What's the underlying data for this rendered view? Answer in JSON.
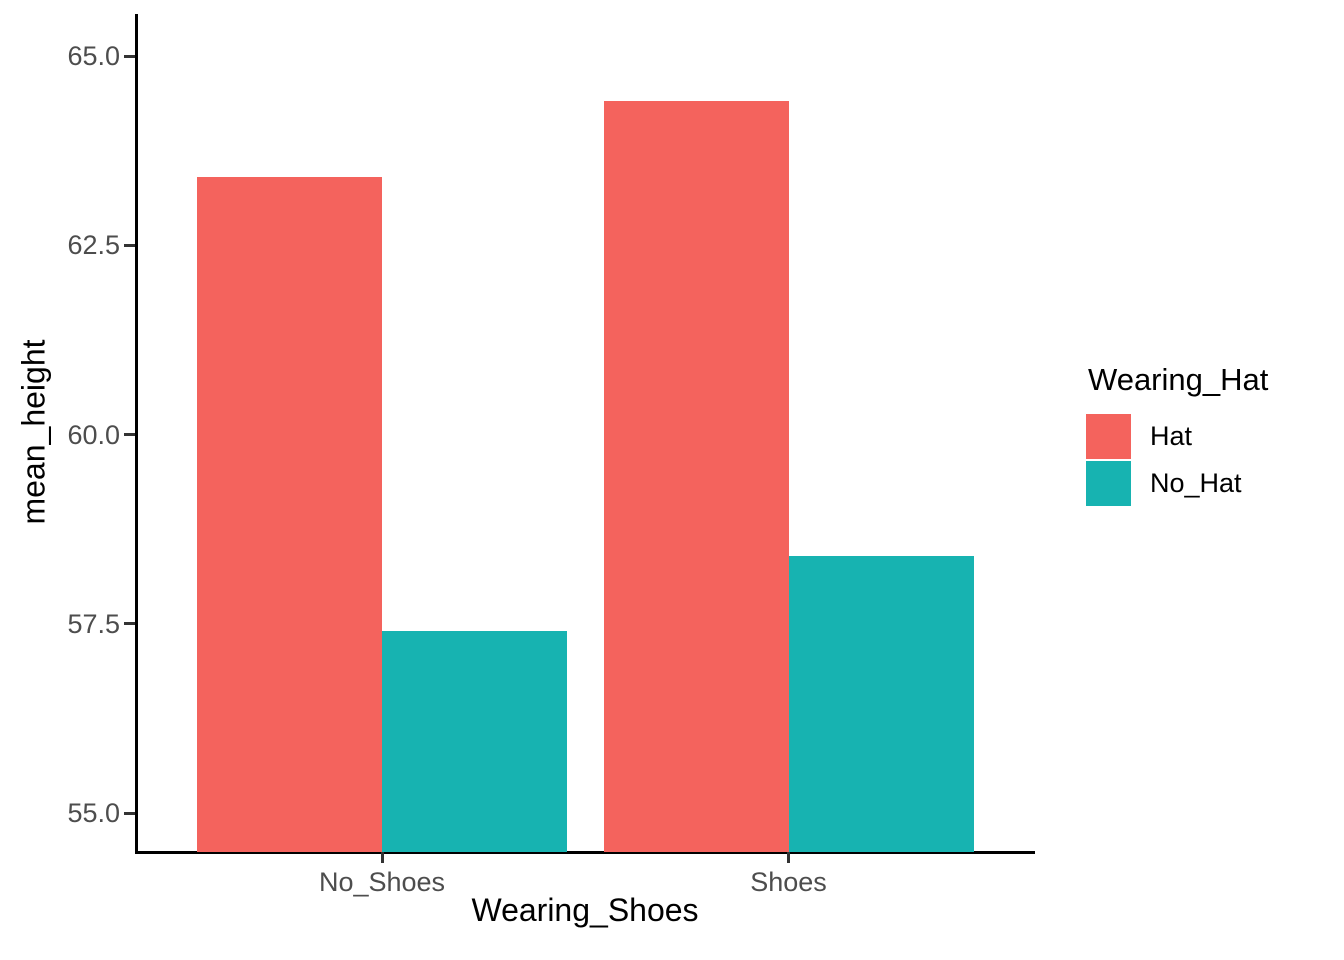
{
  "chart_data": {
    "type": "bar",
    "title": "",
    "xlabel": "Wearing_Shoes",
    "ylabel": "mean_height",
    "categories": [
      "No_Shoes",
      "Shoes"
    ],
    "series": [
      {
        "name": "Hat",
        "color": "#f4635d",
        "values": [
          63.4,
          64.4
        ]
      },
      {
        "name": "No_Hat",
        "color": "#17b3b1",
        "values": [
          57.4,
          58.4
        ]
      }
    ],
    "y_ticks": [
      {
        "value": 55.0,
        "label": "55.0"
      },
      {
        "value": 57.5,
        "label": "57.5"
      },
      {
        "value": 60.0,
        "label": "60.0"
      },
      {
        "value": 62.5,
        "label": "62.5"
      },
      {
        "value": 65.0,
        "label": "65.0"
      }
    ],
    "ylim_visible": [
      54.5,
      65.5
    ],
    "grid": false,
    "legend": {
      "title": "Wearing_Hat",
      "entries": [
        "Hat",
        "No_Hat"
      ],
      "position": "right"
    },
    "colors": {
      "axis_line": "#000000",
      "tick_label": "#4d4d4d",
      "axis_title": "#000000",
      "background": "#ffffff"
    }
  }
}
